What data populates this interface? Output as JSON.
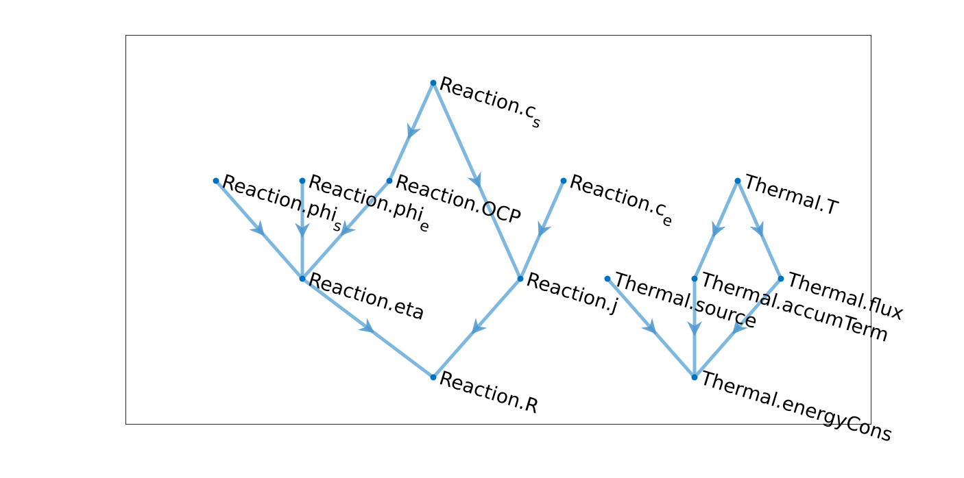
{
  "colors": {
    "edge": "#7fb8df",
    "arrow": "#4a95cf",
    "node": "#0072bd",
    "frame": "#262626",
    "text": "#000000"
  },
  "nodes": [
    {
      "id": "r_cs",
      "label": "Reaction.c",
      "sub": "s"
    },
    {
      "id": "r_phis",
      "label": "Reaction.phi",
      "sub": "s"
    },
    {
      "id": "r_phie",
      "label": "Reaction.phi",
      "sub": "e"
    },
    {
      "id": "r_ocp",
      "label": "Reaction.OCP",
      "sub": ""
    },
    {
      "id": "r_ce",
      "label": "Reaction.c",
      "sub": "e"
    },
    {
      "id": "r_eta",
      "label": "Reaction.eta",
      "sub": ""
    },
    {
      "id": "r_j",
      "label": "Reaction.j",
      "sub": ""
    },
    {
      "id": "r_R",
      "label": "Reaction.R",
      "sub": ""
    },
    {
      "id": "t_T",
      "label": "Thermal.T",
      "sub": ""
    },
    {
      "id": "t_source",
      "label": "Thermal.source",
      "sub": ""
    },
    {
      "id": "t_accum",
      "label": "Thermal.accumTerm",
      "sub": ""
    },
    {
      "id": "t_flux",
      "label": "Thermal.flux",
      "sub": ""
    },
    {
      "id": "t_energy",
      "label": "Thermal.energyCons",
      "sub": ""
    }
  ],
  "edges": [
    {
      "from": "r_cs",
      "to": "r_ocp"
    },
    {
      "from": "r_cs",
      "to": "r_j"
    },
    {
      "from": "r_phis",
      "to": "r_eta"
    },
    {
      "from": "r_phie",
      "to": "r_eta"
    },
    {
      "from": "r_ocp",
      "to": "r_eta"
    },
    {
      "from": "r_ce",
      "to": "r_j"
    },
    {
      "from": "r_eta",
      "to": "r_R"
    },
    {
      "from": "r_j",
      "to": "r_R"
    },
    {
      "from": "t_T",
      "to": "t_accum"
    },
    {
      "from": "t_T",
      "to": "t_flux"
    },
    {
      "from": "t_source",
      "to": "t_energy"
    },
    {
      "from": "t_accum",
      "to": "t_energy"
    },
    {
      "from": "t_flux",
      "to": "t_energy"
    }
  ]
}
